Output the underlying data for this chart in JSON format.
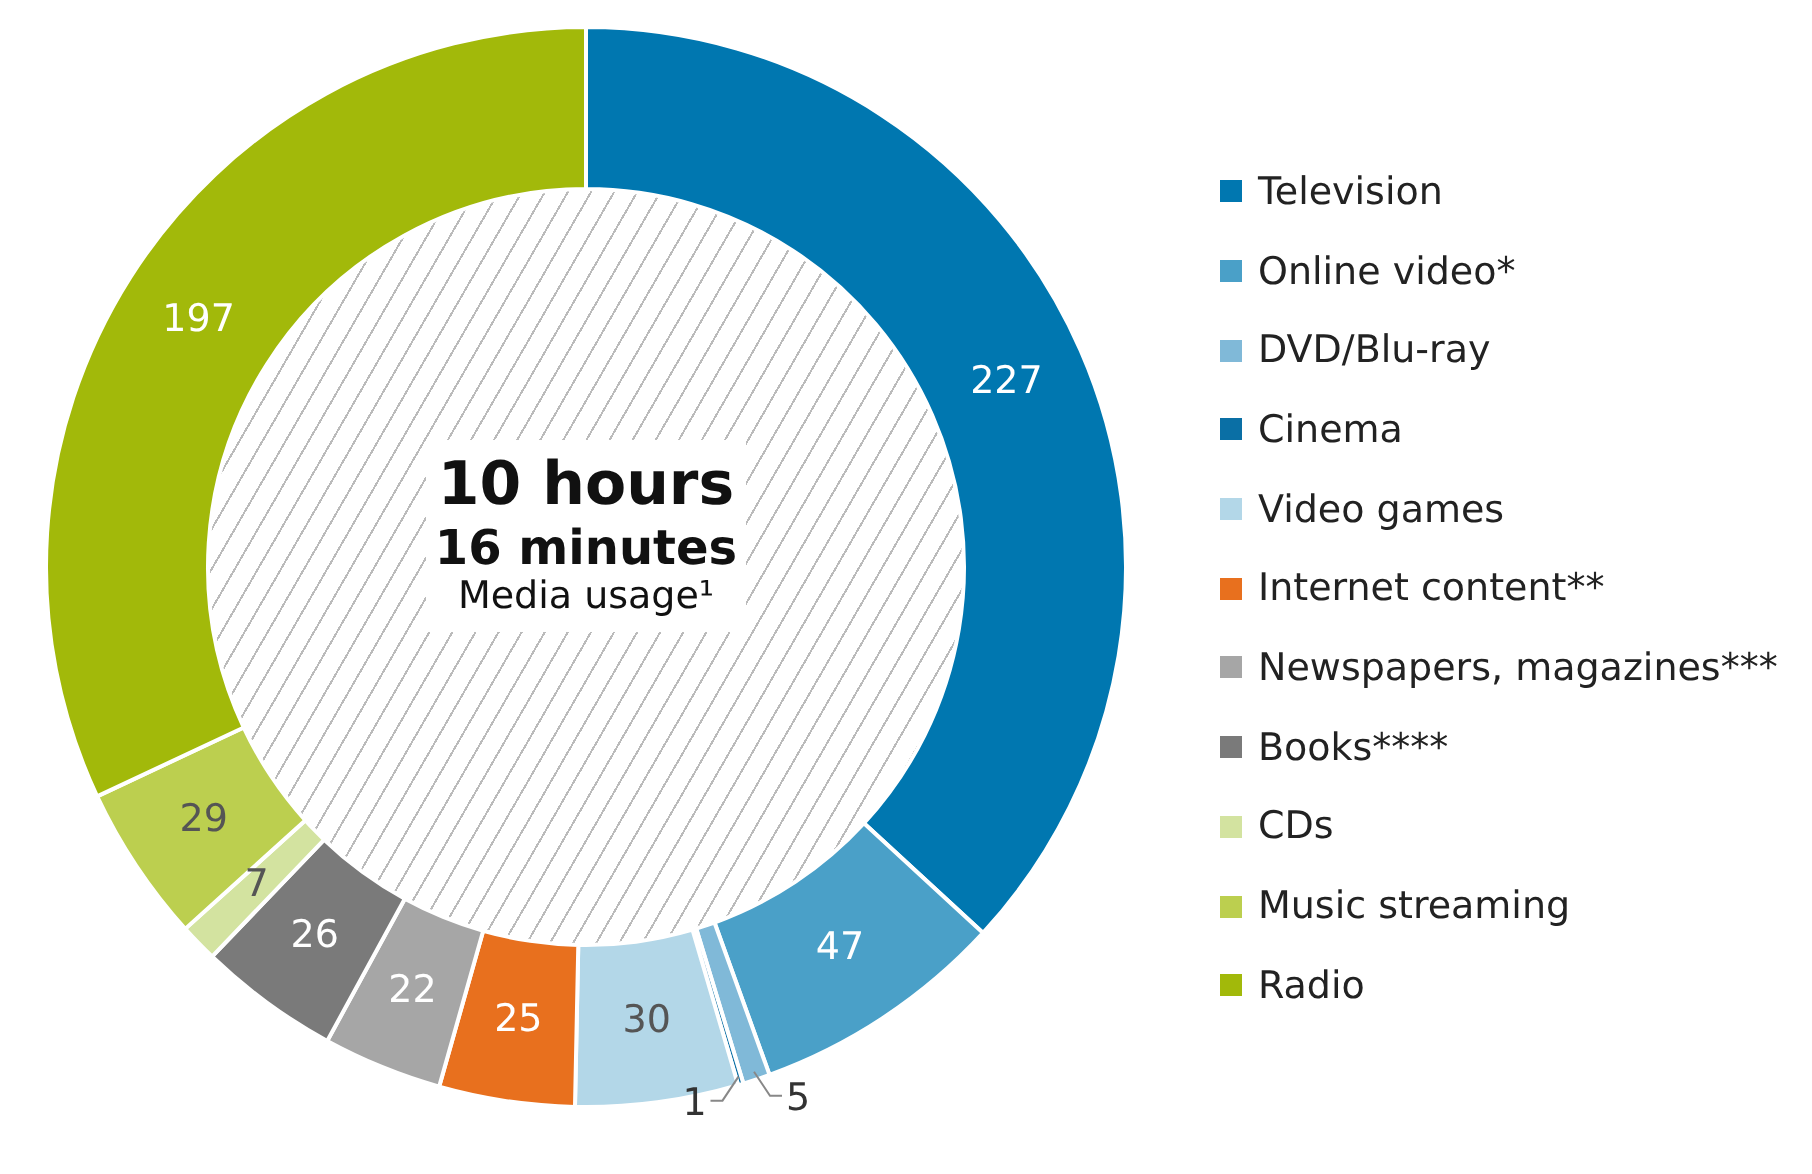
{
  "chart_data": {
    "type": "donut",
    "categories": [
      "Television",
      "Online video*",
      "DVD/Blu-ray",
      "Cinema",
      "Video games",
      "Internet content**",
      "Newspapers, magazines***",
      "Books****",
      "CDs",
      "Music streaming",
      "Radio"
    ],
    "values": [
      227,
      47,
      5,
      1,
      30,
      25,
      22,
      26,
      7,
      29,
      197
    ],
    "colors": [
      "#0077b0",
      "#4aa0c8",
      "#80b9d8",
      "#0a6fa5",
      "#b3d7e8",
      "#e8701e",
      "#a6a6a6",
      "#7a7a7a",
      "#d3e3a0",
      "#bccf4f",
      "#a2b90a"
    ],
    "data_labels": true,
    "legend": "right",
    "annotations": [
      "10 hours",
      "16 minutes",
      "Media usage¹"
    ]
  }
}
